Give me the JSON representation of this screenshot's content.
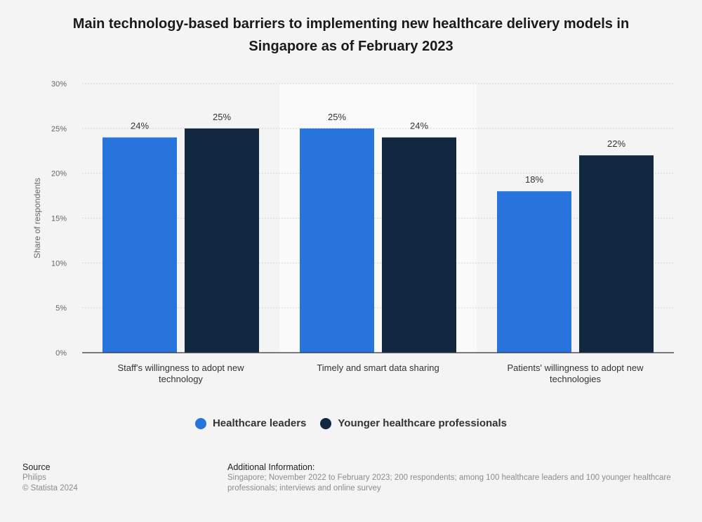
{
  "title": "Main technology-based barriers to implementing new healthcare delivery models in Singapore as of February 2023",
  "colors": {
    "series_a": "#2874dd",
    "series_b": "#122840",
    "grid": "#c8c8c8",
    "axis": "#333333",
    "highlight_band": "#fafafa"
  },
  "chart_data": {
    "type": "bar",
    "categories": [
      [
        "Staff's willingness to adopt new",
        "technology"
      ],
      [
        "Timely and smart data sharing"
      ],
      [
        "Patients' willingness to adopt new",
        "technologies"
      ]
    ],
    "series": [
      {
        "name": "Healthcare leaders",
        "values": [
          24,
          25,
          18
        ]
      },
      {
        "name": "Younger healthcare professionals",
        "values": [
          25,
          24,
          22
        ]
      }
    ],
    "data_labels": [
      [
        "24%",
        "25%",
        "18%"
      ],
      [
        "25%",
        "24%",
        "22%"
      ]
    ],
    "ylabel": "Share of respondents",
    "ylim": [
      0,
      30
    ],
    "yticks": [
      0,
      5,
      10,
      15,
      20,
      25,
      30
    ],
    "ytick_labels": [
      "0%",
      "5%",
      "10%",
      "15%",
      "20%",
      "25%",
      "30%"
    ],
    "grid": true,
    "legend_position": "bottom-center"
  },
  "legend": {
    "items": [
      {
        "label": "Healthcare leaders"
      },
      {
        "label": "Younger healthcare professionals"
      }
    ]
  },
  "footer": {
    "source_heading": "Source",
    "source_name": "Philips",
    "copyright": "© Statista 2024",
    "info_heading": "Additional Information:",
    "info_text": "Singapore; November 2022 to February 2023; 200 respondents; among 100 healthcare leaders and 100 younger healthcare professionals; interviews and online survey"
  }
}
